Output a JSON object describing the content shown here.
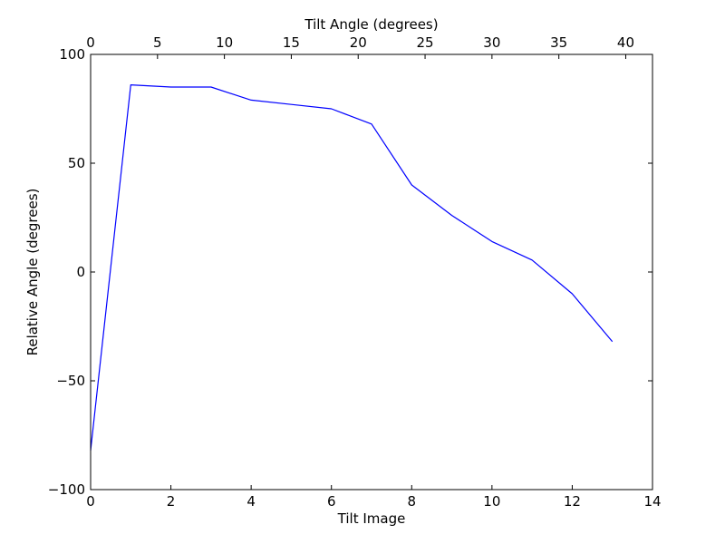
{
  "chart_data": {
    "type": "line",
    "title": "",
    "xlabel": "Tilt Image",
    "ylabel": "Relative Angle (degrees)",
    "x2label": "Tilt Angle (degrees)",
    "xlim": [
      0,
      14
    ],
    "ylim": [
      -100,
      100
    ],
    "x2lim": [
      0,
      42
    ],
    "grid": false,
    "x_ticks": [
      0,
      2,
      4,
      6,
      8,
      10,
      12,
      14
    ],
    "x_tick_labels": [
      "0",
      "2",
      "4",
      "6",
      "8",
      "10",
      "12",
      "14"
    ],
    "y_ticks": [
      -100,
      -50,
      0,
      50,
      100
    ],
    "y_tick_labels": [
      "−100",
      "−50",
      "0",
      "50",
      "100"
    ],
    "x2_ticks": [
      0,
      5,
      10,
      15,
      20,
      25,
      30,
      35,
      40
    ],
    "x2_tick_labels": [
      "0",
      "5",
      "10",
      "15",
      "20",
      "25",
      "30",
      "35",
      "40"
    ],
    "series": [
      {
        "color": "#0000ff",
        "x": [
          0,
          1,
          2,
          3,
          4,
          5,
          6,
          7,
          8,
          9,
          10,
          11,
          12,
          13
        ],
        "y": [
          -82,
          86,
          85,
          85,
          79,
          77,
          75,
          68,
          40,
          26,
          14,
          5.5,
          -10,
          -32
        ]
      }
    ]
  }
}
